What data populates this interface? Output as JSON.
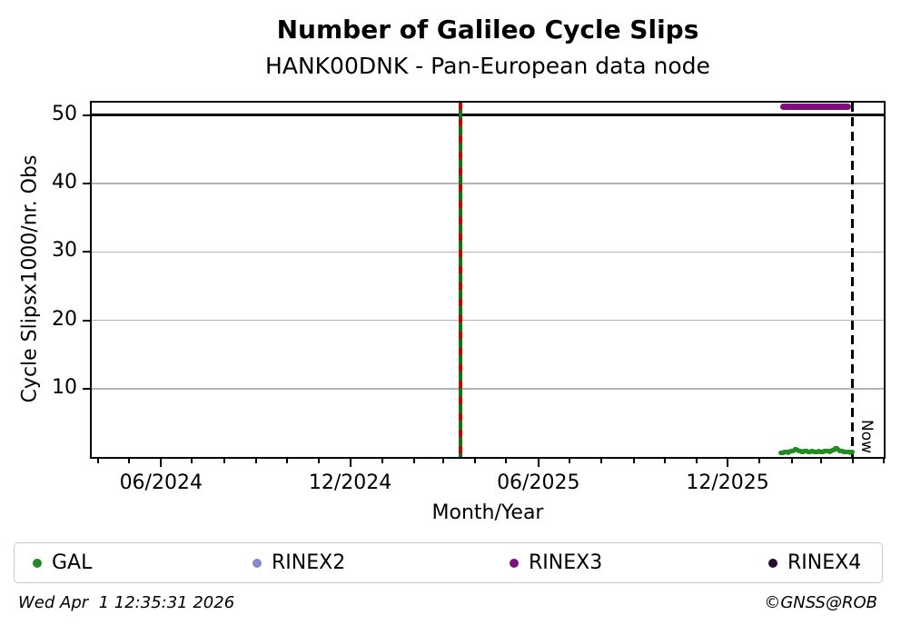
{
  "title": "Number of Galileo Cycle Slips",
  "subtitle": "HANK00DNK - Pan-European data node",
  "footer": {
    "timestamp": "Wed Apr  1 12:35:31 2026",
    "copyright": "©GNSS@ROB"
  },
  "chart_data": {
    "type": "scatter",
    "title": "Number of Galileo Cycle Slips",
    "subtitle": "HANK00DNK - Pan-European data node",
    "xlabel": "Month/Year",
    "ylabel": "Cycle Slipsx1000/nr. Obs",
    "x_axis": {
      "min_date": "2024-03-26",
      "max_date": "2026-05-01",
      "major_ticks": [
        {
          "date": "2024-06-01",
          "label": "06/2024"
        },
        {
          "date": "2024-12-01",
          "label": "12/2024"
        },
        {
          "date": "2025-06-01",
          "label": "06/2025"
        },
        {
          "date": "2025-12-01",
          "label": "12/2025"
        }
      ],
      "minor_tick_interval": "1 month"
    },
    "y_axis": {
      "min": 0,
      "max": 51.85,
      "ticks": [
        10,
        20,
        30,
        40,
        50
      ]
    },
    "grid": {
      "horizontal": true,
      "color": "#b3b3b3",
      "at_ticks": [
        10,
        20,
        30,
        40
      ]
    },
    "threshold_line": {
      "y": 50,
      "color": "#000000"
    },
    "event_line": {
      "date": "2025-03-18",
      "style": "vertical green line with red dashes",
      "green": "#0a7a0a",
      "red": "#cc0000"
    },
    "now_line": {
      "date": "2026-04-01",
      "label": "Now",
      "color": "#000000",
      "style": "dashed"
    },
    "series": [
      {
        "name": "GAL",
        "color": "#228B22",
        "marker": "dot",
        "start_date": "2026-01-21",
        "end_date": "2026-04-01",
        "values": [
          0.55,
          0.6,
          0.65,
          0.6,
          0.7,
          0.75,
          0.7,
          0.65,
          0.7,
          0.75,
          0.8,
          0.85,
          0.9,
          1.0,
          1.1,
          1.15,
          1.05,
          0.95,
          0.85,
          0.8,
          0.75,
          0.7,
          0.75,
          0.8,
          0.85,
          0.8,
          0.75,
          0.7,
          0.72,
          0.75,
          0.8,
          0.82,
          0.78,
          0.75,
          0.7,
          0.72,
          0.78,
          0.8,
          0.76,
          0.72,
          0.7,
          0.74,
          0.8,
          0.86,
          0.9,
          0.85,
          0.8,
          0.78,
          0.82,
          0.88,
          0.95,
          1.05,
          1.2,
          1.3,
          1.22,
          1.1,
          1.0,
          0.9,
          0.85,
          0.8,
          0.78,
          0.74,
          0.7,
          0.74,
          0.78,
          0.74,
          0.7,
          0.66,
          0.7,
          0.72
        ]
      },
      {
        "name": "RINEX3",
        "color": "#7d0f7d",
        "marker": "thick-line",
        "start_date": "2026-01-21",
        "end_date": "2026-03-30",
        "constant_value": 51.2
      }
    ],
    "legend": [
      {
        "label": "GAL",
        "color": "#228B22"
      },
      {
        "label": "RINEX2",
        "color": "#8787c9"
      },
      {
        "label": "RINEX3",
        "color": "#7d0f7d"
      },
      {
        "label": "RINEX4",
        "color": "#270b30"
      }
    ],
    "legend_position": "bottom"
  }
}
